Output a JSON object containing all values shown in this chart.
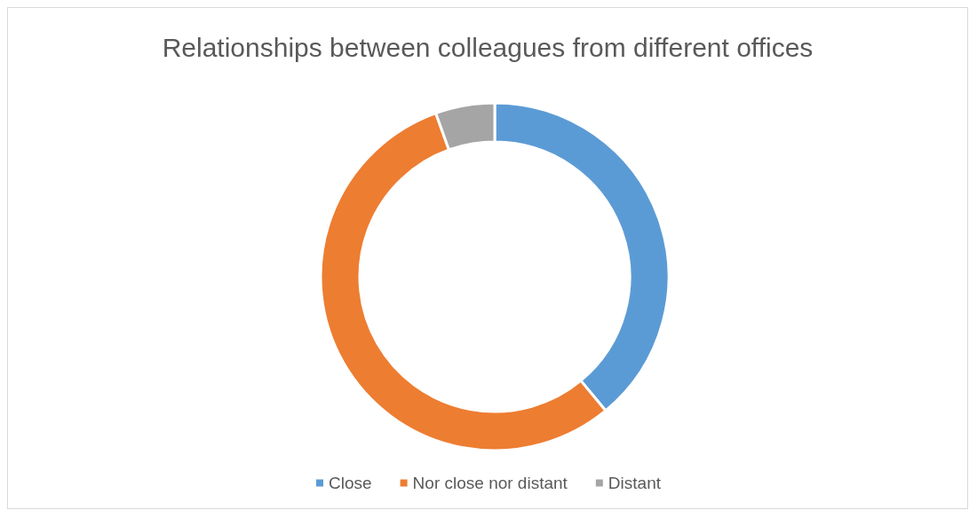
{
  "chart_data": {
    "type": "donut",
    "title": "Relationships between colleagues from different offices",
    "categories": [
      "Close",
      "Nor close nor distant",
      "Distant"
    ],
    "values": [
      39,
      55.5,
      5.5
    ],
    "colors": [
      "#5b9bd5",
      "#ed7d31",
      "#a5a5a5"
    ],
    "legend": "bottom"
  }
}
